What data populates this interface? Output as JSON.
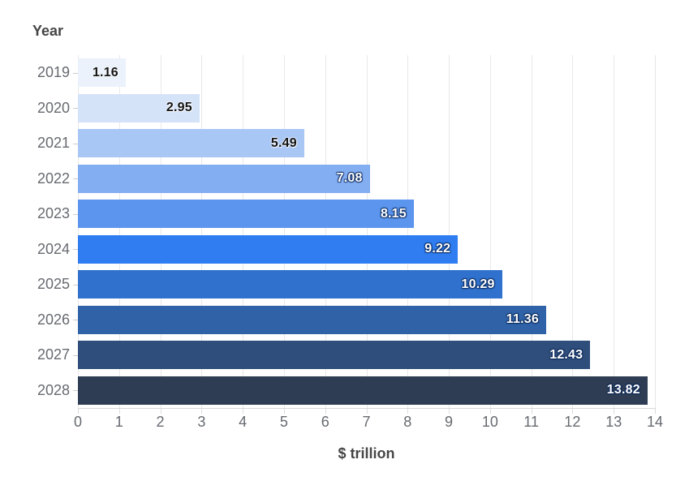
{
  "chart_data": {
    "type": "bar",
    "orientation": "horizontal",
    "y_axis_title": "Year",
    "x_axis_title": "$ trillion",
    "categories": [
      "2019",
      "2020",
      "2021",
      "2022",
      "2023",
      "2024",
      "2025",
      "2026",
      "2027",
      "2028"
    ],
    "values": [
      1.16,
      2.95,
      5.49,
      7.08,
      8.15,
      9.22,
      10.29,
      11.36,
      12.43,
      13.82
    ],
    "value_labels": [
      "1.16",
      "2.95",
      "5.49",
      "7.08",
      "8.15",
      "9.22",
      "10.29",
      "11.36",
      "12.43",
      "13.82"
    ],
    "bar_colors": [
      "#ebf2fc",
      "#d5e3f9",
      "#a9c7f5",
      "#84aef2",
      "#5b95ee",
      "#2f7df0",
      "#2f71cc",
      "#2f62a6",
      "#2f4e7b",
      "#2e3d53"
    ],
    "value_label_colors": [
      "#131313",
      "#131313",
      "#131313",
      "#ffffff",
      "#ffffff",
      "#ffffff",
      "#ffffff",
      "#ffffff",
      "#ffffff",
      "#ffffff"
    ],
    "xlim": [
      0,
      14
    ],
    "x_ticks": [
      0,
      1,
      2,
      3,
      4,
      5,
      6,
      7,
      8,
      9,
      10,
      11,
      12,
      13,
      14
    ],
    "grid": "vertical",
    "legend": "none",
    "colors": {
      "gridline": "#e8e8e8",
      "axis_line": "#d8d8d8",
      "tick_label": "#666a70",
      "axis_title": "#454545"
    }
  }
}
